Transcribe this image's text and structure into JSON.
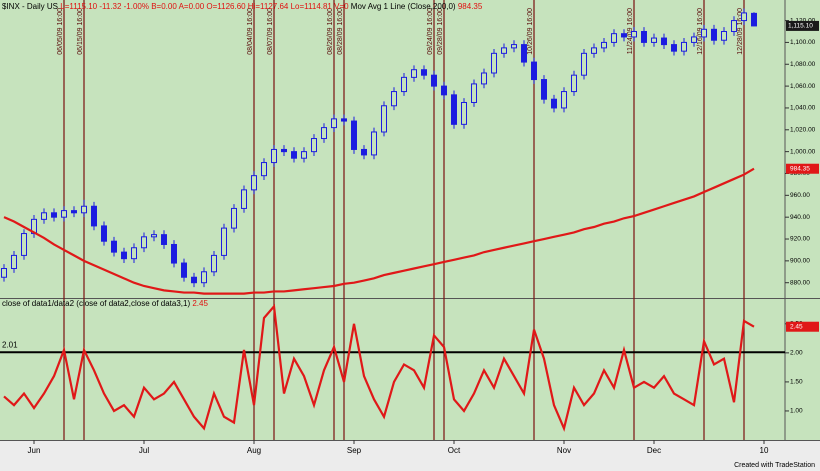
{
  "chart_data": [
    {
      "type": "candlestick",
      "symbol": "$INX - Daily  US",
      "quote": "L=1115.10 -11.32 -1.00% B=0.00 A=0.00 O=1126.60 Hi=1127.64 Lo=1114.81 V=0",
      "color": "#1c1ce0",
      "categories": [
        null,
        null,
        null,
        "Jun",
        null,
        null,
        null,
        null,
        null,
        null,
        null,
        null,
        null,
        null,
        "Jul",
        null,
        null,
        null,
        null,
        null,
        null,
        null,
        null,
        null,
        null,
        "Aug",
        null,
        null,
        null,
        null,
        null,
        null,
        null,
        null,
        null,
        "Sep",
        null,
        null,
        null,
        null,
        null,
        null,
        null,
        null,
        null,
        "Oct",
        null,
        null,
        null,
        null,
        null,
        null,
        null,
        null,
        null,
        null,
        "Nov",
        null,
        null,
        null,
        null,
        null,
        null,
        null,
        null,
        "Dec",
        null,
        null,
        null,
        null,
        null,
        null,
        null,
        null,
        null,
        null,
        "10"
      ],
      "event_labels": [
        null,
        null,
        null,
        null,
        null,
        null,
        "06/05/09 16:00",
        null,
        "06/15/09 16:00",
        null,
        null,
        null,
        null,
        null,
        null,
        null,
        null,
        null,
        null,
        null,
        null,
        null,
        null,
        null,
        null,
        "08/04/09 16:00",
        null,
        "08/07/09 16:00",
        null,
        null,
        null,
        null,
        null,
        "08/26/09 16:00",
        "08/28/09 16:00",
        null,
        null,
        null,
        null,
        null,
        null,
        null,
        null,
        "09/24/09 16:00",
        "09/28/09 16:00",
        null,
        null,
        null,
        null,
        null,
        null,
        null,
        null,
        "10/26/09 16:00",
        null,
        null,
        null,
        null,
        null,
        null,
        null,
        null,
        null,
        "11/24/09 16:00",
        null,
        null,
        null,
        null,
        null,
        null,
        "12/16/09 16:00",
        null,
        null,
        null,
        "12/28/09 16:00",
        null,
        null
      ],
      "open": [
        885,
        893,
        905,
        925,
        938,
        944,
        940,
        946,
        944,
        950,
        932,
        918,
        908,
        902,
        912,
        922,
        924,
        915,
        898,
        885,
        880,
        890,
        905,
        930,
        948,
        965,
        978,
        990,
        1002,
        1000,
        994,
        1000,
        1012,
        1022,
        1030,
        1028,
        1002,
        997,
        1018,
        1042,
        1055,
        1068,
        1075,
        1070,
        1060,
        1052,
        1025,
        1045,
        1062,
        1072,
        1090,
        1095,
        1098,
        1082,
        1066,
        1048,
        1040,
        1055,
        1070,
        1090,
        1095,
        1100,
        1108,
        1105,
        1110,
        1100,
        1104,
        1098,
        1092,
        1100,
        1105,
        1112,
        1102,
        1110,
        1120,
        1126.6,
        null
      ],
      "high": [
        897,
        909,
        929,
        942,
        948,
        948,
        950,
        950,
        956,
        954,
        936,
        922,
        912,
        916,
        926,
        928,
        928,
        919,
        902,
        889,
        894,
        909,
        934,
        952,
        969,
        982,
        994,
        1006,
        1006,
        1004,
        1004,
        1016,
        1026,
        1034,
        1034,
        1032,
        1006,
        1022,
        1046,
        1059,
        1072,
        1079,
        1079,
        1074,
        1064,
        1056,
        1049,
        1066,
        1076,
        1094,
        1099,
        1102,
        1102,
        1086,
        1070,
        1052,
        1059,
        1074,
        1094,
        1099,
        1104,
        1112,
        1112,
        1114,
        1114,
        1108,
        1108,
        1102,
        1104,
        1109,
        1116,
        1116,
        1114,
        1124,
        1131,
        1127.64,
        null
      ],
      "low": [
        881,
        889,
        901,
        921,
        934,
        936,
        936,
        940,
        940,
        928,
        914,
        904,
        898,
        898,
        908,
        918,
        911,
        894,
        881,
        876,
        876,
        886,
        901,
        926,
        944,
        961,
        974,
        986,
        996,
        990,
        990,
        996,
        1008,
        1018,
        1024,
        998,
        993,
        993,
        1014,
        1038,
        1051,
        1064,
        1066,
        1056,
        1048,
        1021,
        1021,
        1041,
        1058,
        1068,
        1086,
        1091,
        1078,
        1062,
        1044,
        1036,
        1036,
        1051,
        1066,
        1086,
        1091,
        1096,
        1101,
        1101,
        1096,
        1096,
        1094,
        1088,
        1088,
        1096,
        1101,
        1098,
        1098,
        1106,
        1116,
        1114.81,
        null
      ],
      "close": [
        893,
        905,
        925,
        938,
        944,
        940,
        946,
        944,
        950,
        932,
        918,
        908,
        902,
        912,
        922,
        924,
        915,
        898,
        885,
        880,
        890,
        905,
        930,
        948,
        965,
        978,
        990,
        1002,
        1000,
        994,
        1000,
        1012,
        1022,
        1030,
        1028,
        1002,
        997,
        1018,
        1042,
        1055,
        1068,
        1075,
        1070,
        1060,
        1052,
        1025,
        1045,
        1062,
        1072,
        1090,
        1095,
        1098,
        1082,
        1066,
        1048,
        1040,
        1055,
        1070,
        1090,
        1095,
        1100,
        1108,
        1105,
        1110,
        1100,
        1104,
        1098,
        1092,
        1100,
        1105,
        1112,
        1102,
        1110,
        1120,
        1127,
        1115.1,
        null
      ],
      "last_price": {
        "value": 1115.1,
        "label": "1,115.10"
      },
      "series": [
        {
          "name": "Mov Avg 1 Line (Close,200,0)",
          "color": "#e01818",
          "values": [
            940,
            936,
            931,
            926,
            921,
            915,
            910,
            905,
            900,
            896,
            892,
            888,
            884,
            880,
            877,
            875,
            873,
            872,
            871,
            871,
            870,
            870,
            870,
            870,
            870,
            871,
            871,
            872,
            872,
            873,
            874,
            875,
            876,
            877,
            879,
            880,
            882,
            884,
            887,
            889,
            891,
            893,
            895,
            897,
            899,
            901,
            903,
            905,
            908,
            910,
            912,
            914,
            916,
            918,
            920,
            922,
            924,
            926,
            929,
            931,
            934,
            936,
            939,
            941,
            944,
            947,
            950,
            953,
            956,
            959,
            963,
            967,
            971,
            975,
            979,
            984.35,
            null
          ]
        }
      ],
      "ylim": [
        866,
        1137
      ],
      "yticks": [
        {
          "value": 880,
          "label": "880.00"
        },
        {
          "value": 900,
          "label": "900.00"
        },
        {
          "value": 920,
          "label": "920.00"
        },
        {
          "value": 940,
          "label": "940.00"
        },
        {
          "value": 960,
          "label": "960.00"
        },
        {
          "value": 980,
          "label": "980.00"
        },
        {
          "value": 1000,
          "label": "1,000.00"
        },
        {
          "value": 1020,
          "label": "1,020.00"
        },
        {
          "value": 1040,
          "label": "1,040.00"
        },
        {
          "value": 1060,
          "label": "1,060.00"
        },
        {
          "value": 1080,
          "label": "1,080.00"
        },
        {
          "value": 1100,
          "label": "1,100.00"
        },
        {
          "value": 1120,
          "label": "1,120.00"
        }
      ]
    },
    {
      "type": "line",
      "series": [
        {
          "name": "close of data1/data2 (close of data2,close of data3,1)",
          "color": "#e01818",
          "values": [
            1.25,
            1.1,
            1.3,
            1.05,
            1.3,
            1.6,
            2.05,
            1.2,
            2.05,
            1.7,
            1.3,
            1.0,
            1.1,
            0.9,
            1.4,
            1.2,
            1.3,
            1.5,
            1.2,
            0.9,
            0.7,
            1.3,
            0.9,
            0.8,
            2.05,
            1.1,
            2.6,
            2.8,
            1.3,
            1.9,
            1.6,
            1.1,
            1.7,
            2.1,
            1.5,
            2.5,
            1.6,
            1.2,
            0.9,
            1.5,
            1.8,
            1.7,
            1.4,
            2.3,
            2.1,
            1.2,
            1.0,
            1.3,
            1.7,
            1.4,
            1.9,
            1.6,
            1.3,
            2.4,
            1.9,
            1.1,
            0.7,
            1.4,
            1.1,
            1.3,
            1.7,
            1.4,
            2.05,
            1.4,
            1.5,
            1.4,
            1.6,
            1.3,
            1.2,
            1.1,
            2.2,
            1.8,
            1.9,
            1.15,
            2.55,
            2.45,
            null
          ]
        }
      ],
      "reference_line": 2.01,
      "ylim": [
        0.5,
        2.91
      ],
      "yticks": [
        {
          "value": 1,
          "label": "1.00"
        },
        {
          "value": 1.5,
          "label": "1.50"
        },
        {
          "value": 2,
          "label": "2.00"
        },
        {
          "value": 2.5,
          "label": "2.50"
        }
      ]
    }
  ],
  "footer": "Created with TradeStation"
}
